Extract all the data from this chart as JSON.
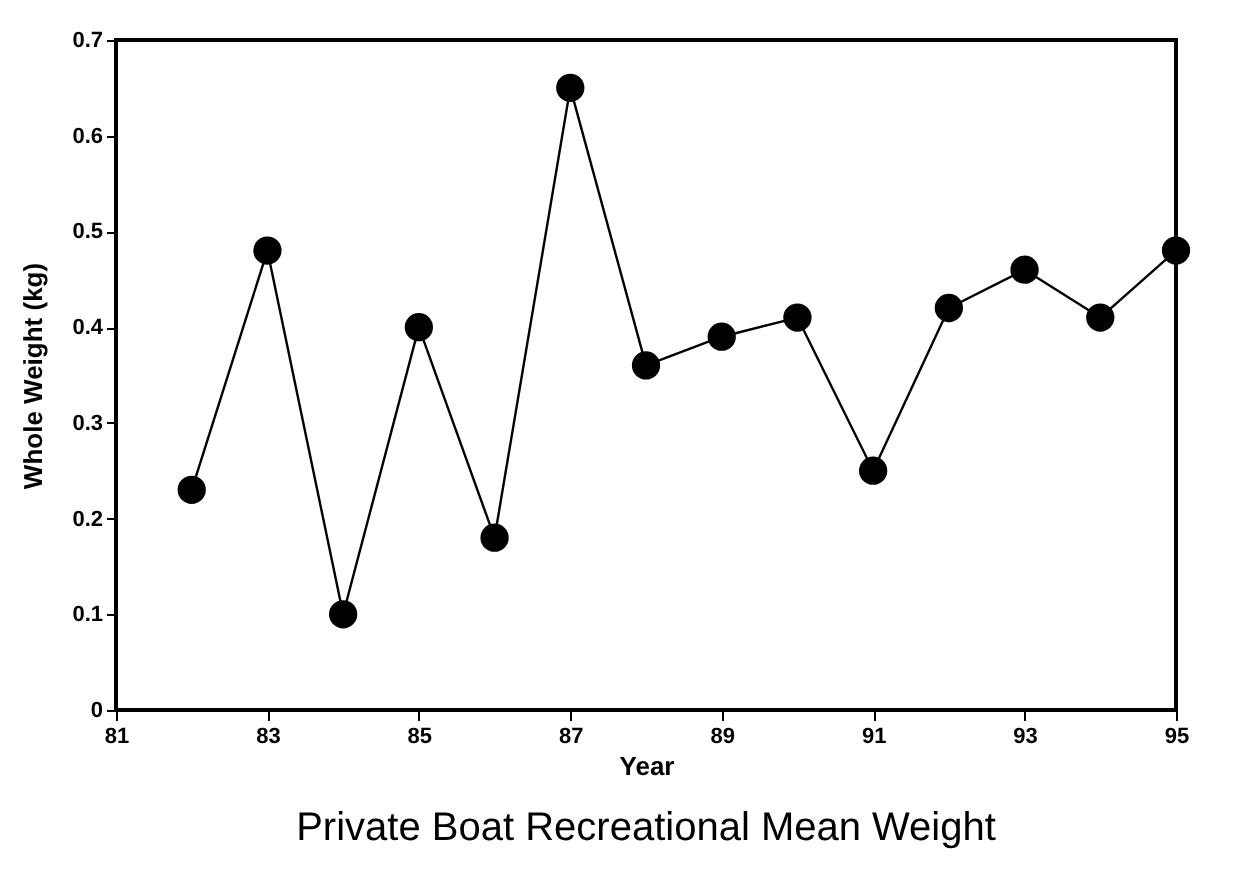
{
  "chart_data": {
    "type": "line",
    "title": "Private Boat  Recreational Mean Weight",
    "xlabel": "Year",
    "ylabel": "Whole Weight (kg)",
    "x": [
      82,
      83,
      84,
      85,
      86,
      87,
      88,
      89,
      90,
      91,
      92,
      93,
      94,
      95
    ],
    "series": [
      {
        "color": "#000000",
        "values": [
          0.23,
          0.48,
          0.1,
          0.4,
          0.18,
          0.65,
          0.36,
          0.39,
          0.41,
          0.25,
          0.42,
          0.46,
          0.41,
          0.48
        ]
      }
    ],
    "xlim": [
      81,
      95
    ],
    "xticks": [
      81,
      83,
      85,
      87,
      89,
      91,
      93,
      95
    ],
    "ylim": [
      0,
      0.7
    ],
    "yticks": [
      0,
      0.1,
      0.2,
      0.3,
      0.4,
      0.5,
      0.6,
      0.7
    ],
    "grid": false,
    "legend": false,
    "marker": "circle",
    "line_style": "solid"
  }
}
